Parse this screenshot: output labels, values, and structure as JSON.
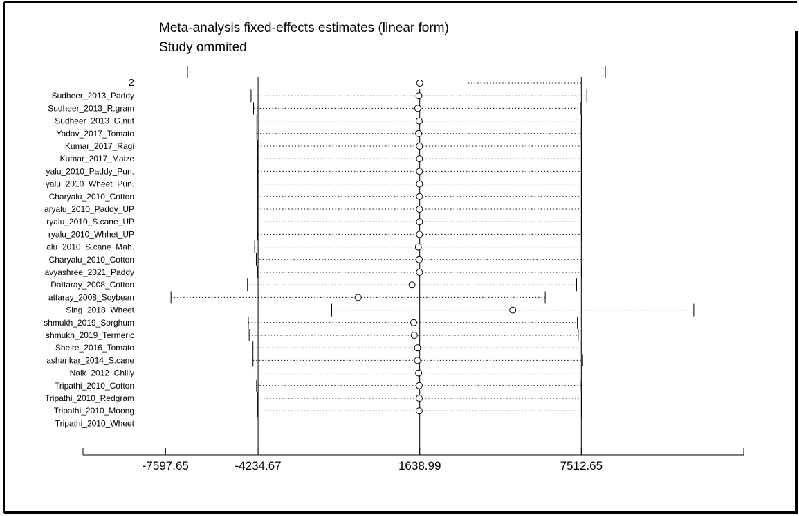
{
  "chart_data": {
    "type": "scatter",
    "title": "Meta-analysis fixed-effects estimates (linear form)",
    "subtitle": "Study ommited",
    "xlim": [
      -10597.65,
      13413.18
    ],
    "xticks": [
      -7597.65,
      -4234.67,
      1638.99,
      7512.65
    ],
    "reference_lines": [
      -4234.67,
      1638.99,
      7512.65
    ],
    "grid": false,
    "legend": "none",
    "rows": [
      {
        "label": "2",
        "estimate": 1638.99,
        "lower": -4234.67,
        "upper": 7512.65
      },
      {
        "label": "Sudheer_2013_Paddy",
        "estimate": 1610,
        "lower": -4490,
        "upper": 7710
      },
      {
        "label": "Sudheer_2013_R.gram",
        "estimate": 1570,
        "lower": -4400,
        "upper": 7480
      },
      {
        "label": "Sudheer_2013_G.nut",
        "estimate": 1620,
        "lower": -4280,
        "upper": 7520
      },
      {
        "label": "Yadav_2017_Tomato",
        "estimate": 1600,
        "lower": -4280,
        "upper": 7510
      },
      {
        "label": "Kumar_2017_Ragi",
        "estimate": 1630,
        "lower": -4250,
        "upper": 7520
      },
      {
        "label": "Kumar_2017_Maize",
        "estimate": 1630,
        "lower": -4250,
        "upper": 7520
      },
      {
        "label": "yalu_2010_Paddy_Pun.",
        "estimate": 1630,
        "lower": -4250,
        "upper": 7520
      },
      {
        "label": "yalu_2010_Wheet_Pun.",
        "estimate": 1630,
        "lower": -4250,
        "upper": 7520
      },
      {
        "label": "Charyalu_2010_Cotton",
        "estimate": 1630,
        "lower": -4260,
        "upper": 7520
      },
      {
        "label": "aryalu_2010_Paddy_UP",
        "estimate": 1630,
        "lower": -4260,
        "upper": 7520
      },
      {
        "label": "ryalu_2010_S.cane_UP",
        "estimate": 1630,
        "lower": -4260,
        "upper": 7520
      },
      {
        "label": "ryalu_2010_Whhet_UP",
        "estimate": 1630,
        "lower": -4250,
        "upper": 7520
      },
      {
        "label": "alu_2010_S.cane_Mah.",
        "estimate": 1590,
        "lower": -4360,
        "upper": 7540
      },
      {
        "label": "Charyalu_2010_Cotton",
        "estimate": 1620,
        "lower": -4300,
        "upper": 7540
      },
      {
        "label": "avyashree_2021_Paddy",
        "estimate": 1630,
        "lower": -4260,
        "upper": 7520
      },
      {
        "label": "Dattaray_2008_Cotton",
        "estimate": 1360,
        "lower": -4620,
        "upper": 7340
      },
      {
        "label": "attaray_2008_Soybean",
        "estimate": -600,
        "lower": -7400,
        "upper": 6200
      },
      {
        "label": "Sing_2018_Wheet",
        "estimate": 5020,
        "lower": -1560,
        "upper": 11600
      },
      {
        "label": "shmukh_2019_Sorghum",
        "estimate": 1420,
        "lower": -4590,
        "upper": 7370
      },
      {
        "label": "shmukh_2019_Termeric",
        "estimate": 1440,
        "lower": -4560,
        "upper": 7400
      },
      {
        "label": "Sheire_2016_Tomato",
        "estimate": 1560,
        "lower": -4420,
        "upper": 7470
      },
      {
        "label": "ashankar_2014_S.cane",
        "estimate": 1560,
        "lower": -4420,
        "upper": 7560
      },
      {
        "label": "Naik_2012_Chilly",
        "estimate": 1600,
        "lower": -4350,
        "upper": 7540
      },
      {
        "label": "Tripathi_2010_Cotton",
        "estimate": 1620,
        "lower": -4290,
        "upper": 7510
      },
      {
        "label": "Tripathi_2010_Redgram",
        "estimate": 1620,
        "lower": -4260,
        "upper": 7520
      },
      {
        "label": "Tripathi_2010_Moong",
        "estimate": 1620,
        "lower": -4260,
        "upper": 7520
      },
      {
        "label": "Tripathi_2010_Wheet",
        "estimate": null,
        "lower": null,
        "upper": null
      }
    ]
  }
}
